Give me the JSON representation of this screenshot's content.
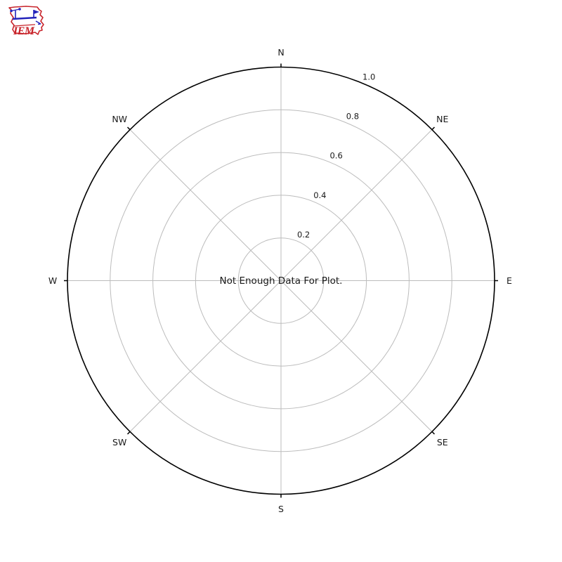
{
  "logo": {
    "text": "IEM",
    "alt": "Iowa Environmental Mesonet logo",
    "outline_color": "#c8242b",
    "text_color": "#c8242b",
    "instrument_color": "#2424bb"
  },
  "chart_data": {
    "type": "windrose-polar",
    "title": "",
    "status_message": "Not Enough Data For Plot.",
    "direction_labels": [
      "N",
      "NE",
      "E",
      "SE",
      "S",
      "SW",
      "W",
      "NW"
    ],
    "radial_tick_labels": [
      "0.2",
      "0.4",
      "0.6",
      "0.8",
      "1.0"
    ],
    "radial_ticks": [
      0.2,
      0.4,
      0.6,
      0.8,
      1.0
    ],
    "rmax": 1.0,
    "rlabel_angle_deg": 22.5,
    "series": [],
    "grid": true,
    "grid_color": "#bcbcbc",
    "spine_color": "#000000",
    "tick_label_color": "#1a1a1a",
    "direction_label_color": "#1a1a1a",
    "legend": "none"
  }
}
